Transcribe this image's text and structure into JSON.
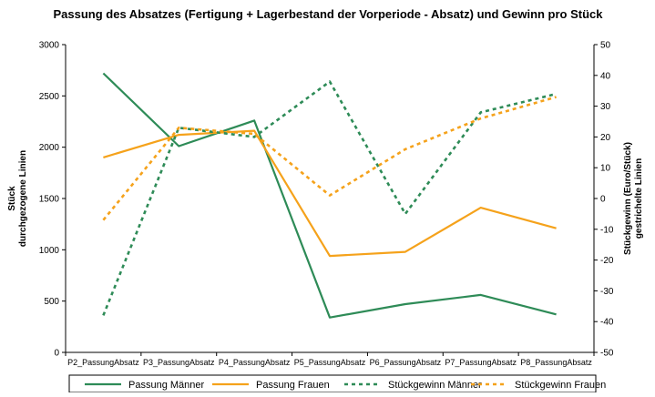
{
  "chart_data": {
    "type": "line",
    "title": "Passung des Absatzes (Fertigung + Lagerbestand der Vorperiode - Absatz) und Gewinn pro Stück",
    "ylabel": [
      "Stück",
      "durchgezogene Linien"
    ],
    "y2label": [
      "Stückgewinn (Euro/Stück)",
      "gestrichelte Linien"
    ],
    "xlabel": "",
    "categories": [
      "P2_PassungAbsatz",
      "P3_PassungAbsatz",
      "P4_PassungAbsatz",
      "P5_PassungAbsatz",
      "P6_PassungAbsatz",
      "P7_PassungAbsatz",
      "P8_PassungAbsatz"
    ],
    "ylim": [
      0,
      3000
    ],
    "y_ticks": [
      "0",
      "500",
      "1000",
      "1500",
      "2000",
      "2500",
      "3000"
    ],
    "y2lim": [
      -50,
      50
    ],
    "y2_ticks": [
      "-50",
      "-40",
      "-30",
      "-20",
      "-10",
      "0",
      "10",
      "20",
      "30",
      "40",
      "50"
    ],
    "grid": false,
    "legend_position": "bottom",
    "series": [
      {
        "name": "Passung Männer",
        "axis": "left",
        "style": "solid",
        "color": "#2e8b57",
        "values": [
          2720,
          2010,
          2260,
          340,
          470,
          560,
          370
        ]
      },
      {
        "name": "Passung Frauen",
        "axis": "left",
        "style": "solid",
        "color": "#f5a21b",
        "values": [
          1900,
          2120,
          2160,
          940,
          980,
          1410,
          1210
        ]
      },
      {
        "name": "Stückgewinn Männer",
        "axis": "right",
        "style": "dashed",
        "color": "#2e8b57",
        "values": [
          -38,
          23,
          20,
          38,
          -5,
          28,
          34
        ]
      },
      {
        "name": "Stückgewinn Frauen",
        "axis": "right",
        "style": "dashed",
        "color": "#f5a21b",
        "values": [
          -7,
          23,
          21,
          1,
          16,
          26,
          33
        ]
      }
    ]
  }
}
